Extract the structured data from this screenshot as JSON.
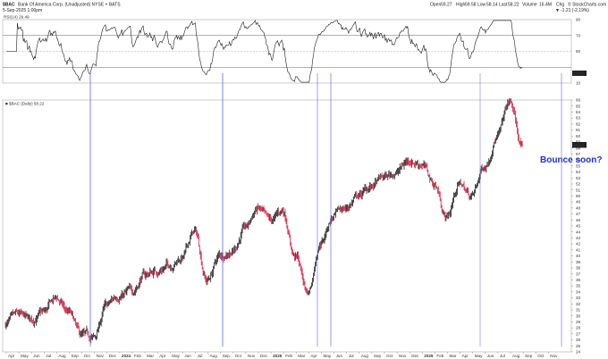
{
  "header": {
    "symbol": "$BAC",
    "company": "Bank Of America Corp. (Unadjusted) NYSE + BATS",
    "date": "5-Sep-2025 1:00pm",
    "open_label": "Open",
    "open": "59.27",
    "high_label": "High",
    "high": "59.58",
    "low_label": "Low",
    "low": "58.14",
    "last_label": "Last",
    "last": "58.22",
    "volume_label": "Volume",
    "volume": "16.4M",
    "chg_label": "Chg",
    "chg": "-1.21 (-2.19%)",
    "chg_arrow": "▼",
    "brand": "© StockCharts.com"
  },
  "rsi_panel": {
    "label": "RSI(14) 29.49",
    "value_tag": "29.49",
    "ticks": [
      90,
      70,
      50,
      10
    ],
    "upper_level": 70,
    "lower_level": 30
  },
  "price_panel": {
    "label": "■ $BAC (Daily) 58.22",
    "last_tag": "58.22",
    "ticks": [
      66,
      65,
      64,
      63,
      62,
      61,
      60,
      59,
      58,
      57,
      56,
      55,
      54,
      53,
      52,
      51,
      50,
      49,
      48,
      47,
      46,
      45,
      44,
      43,
      42,
      41,
      40,
      39,
      38,
      37,
      36,
      35,
      34,
      33,
      32,
      31,
      30,
      29,
      28,
      27,
      26,
      25,
      24
    ]
  },
  "x_axis": {
    "labels": [
      "Apr",
      "May",
      "Jun",
      "Jul",
      "Aug",
      "Sep",
      "Oct",
      "Nov",
      "Dec",
      "2024",
      "Feb",
      "Mar",
      "Apr",
      "May",
      "Jun",
      "Jul",
      "Aug",
      "Sep",
      "Oct",
      "Nov",
      "Dec",
      "2025",
      "Feb",
      "Mar",
      "Apr",
      "May",
      "Jun",
      "Jul",
      "Aug",
      "Sep",
      "Oct",
      "Nov",
      "Dec",
      "2026",
      "Feb",
      "Mar",
      "Apr",
      "May",
      "Jun",
      "Jul",
      "Aug",
      "Sep",
      "Oct",
      "Nov"
    ],
    "bold": [
      "2024",
      "2025",
      "2026"
    ]
  },
  "annotation": "Bounce soon?",
  "colors": {
    "highlight": "#6f6ff0",
    "rsi_line": "#1c1c1c",
    "rsi_overbought": "#2e8b2e",
    "up_bar": "#111111",
    "down_bar": "#cc1133",
    "note": "#1f2fd6"
  },
  "chart_data": {
    "type": "ohlc",
    "title": "$BAC (Daily)",
    "last_value": 58.22,
    "rsi_last": 29.49,
    "price_range": [
      24,
      66
    ],
    "rsi_range": [
      10,
      90
    ],
    "price_path": [
      {
        "x": "Apr",
        "y": 28.7
      },
      {
        "x": "May",
        "y": 29.8
      },
      {
        "x": "Jun",
        "y": 29.2
      },
      {
        "x": "Jul",
        "y": 30.4
      },
      {
        "x": "Aug",
        "y": 32.8
      },
      {
        "x": "Sep",
        "y": 30.5
      },
      {
        "x": "Oct",
        "y": 26.5
      },
      {
        "x": "Nov",
        "y": 26.2
      },
      {
        "x": "Dec",
        "y": 31.5
      },
      {
        "x": "2024",
        "y": 33.5
      },
      {
        "x": "Feb",
        "y": 34.0
      },
      {
        "x": "Mar",
        "y": 36.8
      },
      {
        "x": "Apr",
        "y": 37.5
      },
      {
        "x": "May",
        "y": 38.5
      },
      {
        "x": "Jun",
        "y": 39.8
      },
      {
        "x": "Jul",
        "y": 44.0
      },
      {
        "x": "Aug",
        "y": 36.0
      },
      {
        "x": "Sep",
        "y": 40.0
      },
      {
        "x": "Oct",
        "y": 41.0
      },
      {
        "x": "Nov",
        "y": 44.5
      },
      {
        "x": "Dec",
        "y": 47.8
      },
      {
        "x": "2025",
        "y": 45.5
      },
      {
        "x": "Feb",
        "y": 47.5
      },
      {
        "x": "Mar",
        "y": 40.0
      },
      {
        "x": "Apr",
        "y": 34.0
      },
      {
        "x": "May",
        "y": 42.5
      },
      {
        "x": "Jun",
        "y": 46.5
      },
      {
        "x": "Jul",
        "y": 48.0
      },
      {
        "x": "Aug",
        "y": 50.0
      },
      {
        "x": "Sep",
        "y": 51.5
      },
      {
        "x": "Oct",
        "y": 53.0
      },
      {
        "x": "Nov",
        "y": 54.0
      },
      {
        "x": "Dec",
        "y": 56.0
      },
      {
        "x": "2026",
        "y": 55.5
      },
      {
        "x": "Feb",
        "y": 52.0
      },
      {
        "x": "Mar",
        "y": 46.5
      },
      {
        "x": "Apr",
        "y": 52.0
      },
      {
        "x": "May",
        "y": 50.0
      },
      {
        "x": "Jun",
        "y": 55.0
      },
      {
        "x": "Jul",
        "y": 60.0
      },
      {
        "x": "Aug",
        "y": 65.5
      },
      {
        "x": "Sep",
        "y": 58.22
      }
    ],
    "highlights": [
      "Oct 2023",
      "Aug 2024",
      "Mar 2025",
      "Apr 2025",
      "Mar 2026",
      "Sep 2026"
    ]
  }
}
